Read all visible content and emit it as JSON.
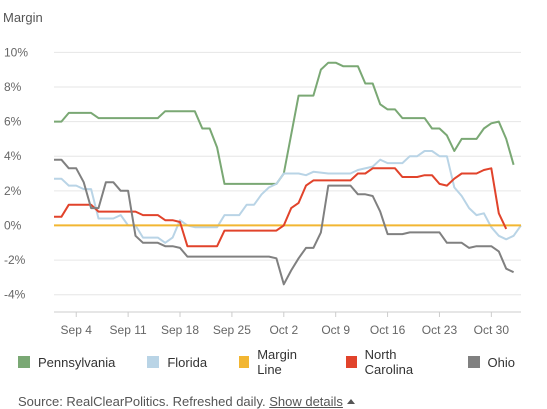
{
  "chart_data": {
    "type": "line",
    "title": "Margin",
    "xlabel": "",
    "ylabel": "",
    "ylim": [
      -5,
      11
    ],
    "yticks": [
      10,
      8,
      6,
      4,
      2,
      0,
      -2,
      -4
    ],
    "ytick_labels": [
      "10%",
      "8%",
      "6%",
      "4%",
      "2%",
      "0%",
      "-2%",
      "-4%"
    ],
    "xlim": [
      "2016-09-01",
      "2016-11-03"
    ],
    "xticks": [
      "2016-09-04",
      "2016-09-11",
      "2016-09-18",
      "2016-09-25",
      "2016-10-02",
      "2016-10-09",
      "2016-10-16",
      "2016-10-23",
      "2016-10-30"
    ],
    "xtick_labels": [
      "Sep 4",
      "Sep 11",
      "Sep 18",
      "Sep 25",
      "Oct 2",
      "Oct 9",
      "Oct 16",
      "Oct 23",
      "Oct 30"
    ],
    "grid": true,
    "legend_position": "bottom",
    "series": [
      {
        "name": "Pennsylvania",
        "color": "#7aa874",
        "points": [
          [
            "2016-09-01",
            6.0
          ],
          [
            "2016-09-02",
            6.0
          ],
          [
            "2016-09-03",
            6.5
          ],
          [
            "2016-09-06",
            6.5
          ],
          [
            "2016-09-07",
            6.2
          ],
          [
            "2016-09-15",
            6.2
          ],
          [
            "2016-09-16",
            6.6
          ],
          [
            "2016-09-20",
            6.6
          ],
          [
            "2016-09-21",
            5.6
          ],
          [
            "2016-09-22",
            5.6
          ],
          [
            "2016-09-23",
            4.5
          ],
          [
            "2016-09-24",
            2.4
          ],
          [
            "2016-10-01",
            2.4
          ],
          [
            "2016-10-02",
            3.0
          ],
          [
            "2016-10-04",
            7.5
          ],
          [
            "2016-10-06",
            7.5
          ],
          [
            "2016-10-07",
            9.0
          ],
          [
            "2016-10-08",
            9.4
          ],
          [
            "2016-10-09",
            9.4
          ],
          [
            "2016-10-10",
            9.2
          ],
          [
            "2016-10-12",
            9.2
          ],
          [
            "2016-10-13",
            8.2
          ],
          [
            "2016-10-14",
            8.2
          ],
          [
            "2016-10-15",
            7.0
          ],
          [
            "2016-10-16",
            6.7
          ],
          [
            "2016-10-17",
            6.7
          ],
          [
            "2016-10-18",
            6.2
          ],
          [
            "2016-10-21",
            6.2
          ],
          [
            "2016-10-22",
            5.6
          ],
          [
            "2016-10-23",
            5.6
          ],
          [
            "2016-10-24",
            5.2
          ],
          [
            "2016-10-25",
            4.3
          ],
          [
            "2016-10-26",
            5.0
          ],
          [
            "2016-10-28",
            5.0
          ],
          [
            "2016-10-29",
            5.6
          ],
          [
            "2016-10-30",
            5.9
          ],
          [
            "2016-10-31",
            6.0
          ],
          [
            "2016-11-01",
            5.0
          ],
          [
            "2016-11-02",
            3.5
          ]
        ]
      },
      {
        "name": "Florida",
        "color": "#b9d4e6",
        "points": [
          [
            "2016-09-01",
            2.7
          ],
          [
            "2016-09-02",
            2.7
          ],
          [
            "2016-09-03",
            2.3
          ],
          [
            "2016-09-04",
            2.3
          ],
          [
            "2016-09-05",
            2.1
          ],
          [
            "2016-09-06",
            2.1
          ],
          [
            "2016-09-07",
            0.4
          ],
          [
            "2016-09-09",
            0.4
          ],
          [
            "2016-09-10",
            0.6
          ],
          [
            "2016-09-11",
            0.0
          ],
          [
            "2016-09-12",
            0.0
          ],
          [
            "2016-09-13",
            -0.7
          ],
          [
            "2016-09-15",
            -0.7
          ],
          [
            "2016-09-16",
            -1.0
          ],
          [
            "2016-09-17",
            -0.7
          ],
          [
            "2016-09-18",
            0.3
          ],
          [
            "2016-09-19",
            0.0
          ],
          [
            "2016-09-20",
            -0.1
          ],
          [
            "2016-09-21",
            -0.1
          ],
          [
            "2016-09-23",
            -0.1
          ],
          [
            "2016-09-24",
            0.6
          ],
          [
            "2016-09-26",
            0.6
          ],
          [
            "2016-09-27",
            1.2
          ],
          [
            "2016-09-28",
            1.2
          ],
          [
            "2016-09-29",
            1.8
          ],
          [
            "2016-09-30",
            2.2
          ],
          [
            "2016-10-01",
            2.4
          ],
          [
            "2016-10-02",
            3.0
          ],
          [
            "2016-10-04",
            3.0
          ],
          [
            "2016-10-05",
            2.9
          ],
          [
            "2016-10-06",
            3.1
          ],
          [
            "2016-10-08",
            3.0
          ],
          [
            "2016-10-11",
            3.0
          ],
          [
            "2016-10-12",
            3.2
          ],
          [
            "2016-10-14",
            3.4
          ],
          [
            "2016-10-15",
            3.8
          ],
          [
            "2016-10-16",
            3.6
          ],
          [
            "2016-10-18",
            3.6
          ],
          [
            "2016-10-19",
            4.0
          ],
          [
            "2016-10-20",
            4.0
          ],
          [
            "2016-10-21",
            4.3
          ],
          [
            "2016-10-22",
            4.3
          ],
          [
            "2016-10-23",
            4.0
          ],
          [
            "2016-10-24",
            4.0
          ],
          [
            "2016-10-25",
            2.2
          ],
          [
            "2016-10-26",
            1.7
          ],
          [
            "2016-10-27",
            1.0
          ],
          [
            "2016-10-28",
            0.6
          ],
          [
            "2016-10-29",
            0.7
          ],
          [
            "2016-10-30",
            -0.1
          ],
          [
            "2016-10-31",
            -0.6
          ],
          [
            "2016-11-01",
            -0.8
          ],
          [
            "2016-11-02",
            -0.6
          ],
          [
            "2016-11-03",
            0.0
          ]
        ]
      },
      {
        "name": "Margin Line",
        "color": "#f2b632",
        "points": [
          [
            "2016-09-01",
            0.0
          ],
          [
            "2016-11-03",
            0.0
          ]
        ]
      },
      {
        "name": "North Carolina",
        "color": "#e1432b",
        "points": [
          [
            "2016-09-01",
            0.5
          ],
          [
            "2016-09-02",
            0.5
          ],
          [
            "2016-09-03",
            1.2
          ],
          [
            "2016-09-06",
            1.2
          ],
          [
            "2016-09-07",
            0.8
          ],
          [
            "2016-09-12",
            0.8
          ],
          [
            "2016-09-13",
            0.6
          ],
          [
            "2016-09-15",
            0.6
          ],
          [
            "2016-09-16",
            0.3
          ],
          [
            "2016-09-17",
            0.3
          ],
          [
            "2016-09-18",
            0.2
          ],
          [
            "2016-09-19",
            -1.2
          ],
          [
            "2016-09-23",
            -1.2
          ],
          [
            "2016-09-24",
            -0.3
          ],
          [
            "2016-10-01",
            -0.3
          ],
          [
            "2016-10-02",
            0.0
          ],
          [
            "2016-10-03",
            1.0
          ],
          [
            "2016-10-04",
            1.3
          ],
          [
            "2016-10-05",
            2.3
          ],
          [
            "2016-10-06",
            2.6
          ],
          [
            "2016-10-11",
            2.6
          ],
          [
            "2016-10-12",
            3.0
          ],
          [
            "2016-10-13",
            3.0
          ],
          [
            "2016-10-14",
            3.3
          ],
          [
            "2016-10-17",
            3.3
          ],
          [
            "2016-10-18",
            2.8
          ],
          [
            "2016-10-20",
            2.8
          ],
          [
            "2016-10-21",
            2.9
          ],
          [
            "2016-10-22",
            2.9
          ],
          [
            "2016-10-23",
            2.4
          ],
          [
            "2016-10-24",
            2.3
          ],
          [
            "2016-10-25",
            2.7
          ],
          [
            "2016-10-26",
            3.0
          ],
          [
            "2016-10-28",
            3.0
          ],
          [
            "2016-10-29",
            3.2
          ],
          [
            "2016-10-30",
            3.3
          ],
          [
            "2016-10-31",
            0.7
          ],
          [
            "2016-11-01",
            -0.2
          ]
        ]
      },
      {
        "name": "Ohio",
        "color": "#808080",
        "points": [
          [
            "2016-09-01",
            3.8
          ],
          [
            "2016-09-02",
            3.8
          ],
          [
            "2016-09-03",
            3.3
          ],
          [
            "2016-09-04",
            3.3
          ],
          [
            "2016-09-05",
            2.5
          ],
          [
            "2016-09-06",
            1.0
          ],
          [
            "2016-09-07",
            1.0
          ],
          [
            "2016-09-08",
            2.5
          ],
          [
            "2016-09-09",
            2.5
          ],
          [
            "2016-09-10",
            2.0
          ],
          [
            "2016-09-11",
            2.0
          ],
          [
            "2016-09-12",
            -0.6
          ],
          [
            "2016-09-13",
            -1.0
          ],
          [
            "2016-09-15",
            -1.0
          ],
          [
            "2016-09-16",
            -1.2
          ],
          [
            "2016-09-17",
            -1.2
          ],
          [
            "2016-09-18",
            -1.3
          ],
          [
            "2016-09-19",
            -1.8
          ],
          [
            "2016-09-30",
            -1.8
          ],
          [
            "2016-10-01",
            -1.9
          ],
          [
            "2016-10-02",
            -3.4
          ],
          [
            "2016-10-03",
            -2.6
          ],
          [
            "2016-10-04",
            -1.9
          ],
          [
            "2016-10-05",
            -1.3
          ],
          [
            "2016-10-06",
            -1.3
          ],
          [
            "2016-10-07",
            -0.4
          ],
          [
            "2016-10-08",
            2.3
          ],
          [
            "2016-10-11",
            2.3
          ],
          [
            "2016-10-12",
            1.8
          ],
          [
            "2016-10-13",
            1.8
          ],
          [
            "2016-10-14",
            1.7
          ],
          [
            "2016-10-15",
            0.8
          ],
          [
            "2016-10-16",
            -0.5
          ],
          [
            "2016-10-18",
            -0.5
          ],
          [
            "2016-10-19",
            -0.4
          ],
          [
            "2016-10-23",
            -0.4
          ],
          [
            "2016-10-24",
            -1.0
          ],
          [
            "2016-10-26",
            -1.0
          ],
          [
            "2016-10-27",
            -1.3
          ],
          [
            "2016-10-28",
            -1.2
          ],
          [
            "2016-10-30",
            -1.2
          ],
          [
            "2016-10-31",
            -1.5
          ],
          [
            "2016-11-01",
            -2.5
          ],
          [
            "2016-11-02",
            -2.7
          ]
        ]
      }
    ]
  },
  "footer": {
    "source_text": "Source: RealClearPolitics. Refreshed daily.",
    "details_link": "Show details"
  }
}
